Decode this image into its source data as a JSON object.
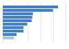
{
  "chart_data": {
    "type": "bar",
    "orientation": "horizontal",
    "categories": [
      null,
      null,
      null,
      null,
      null,
      null,
      null,
      null,
      null,
      null
    ],
    "values": [
      88,
      80,
      48,
      47,
      46,
      39,
      33,
      33,
      22,
      18
    ],
    "colors": [
      "#3c7fd6",
      "#3c7fd6",
      "#3c7fd6",
      "#3c7fd6",
      "#3c7fd6",
      "#3c7fd6",
      "#3c7fd6",
      "#3c7fd6",
      "#3c7fd6",
      "#a9c3e8"
    ],
    "xlim": [
      0,
      100
    ],
    "xticks": [
      0,
      20,
      40,
      60,
      80,
      100
    ],
    "grid": true,
    "tick_labels": false
  }
}
